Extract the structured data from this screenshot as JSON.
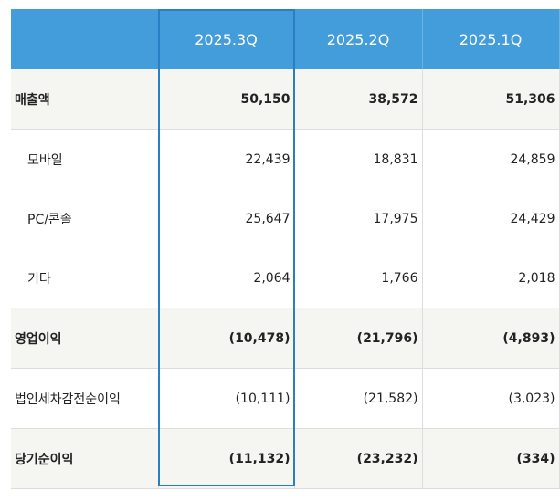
{
  "table": {
    "columns": [
      "",
      "2025.3Q",
      "2025.2Q",
      "2025.1Q"
    ],
    "rows": [
      {
        "label": "매출액",
        "values": [
          "50,150",
          "38,572",
          "51,306"
        ],
        "bold": true
      },
      {
        "label": "모바일",
        "values": [
          "22,439",
          "18,831",
          "24,859"
        ]
      },
      {
        "label": "PC/콘솔",
        "values": [
          "25,647",
          "17,975",
          "24,429"
        ]
      },
      {
        "label": "기타",
        "values": [
          "2,064",
          "1,766",
          "2,018"
        ]
      },
      {
        "label": "영업이익",
        "values": [
          "(10,478)",
          "(21,796)",
          "(4,893)"
        ],
        "bold": true
      },
      {
        "label": "법인세차감전순이익",
        "values": [
          "(10,111)",
          "(21,582)",
          "(3,023)"
        ]
      },
      {
        "label": "당기순이익",
        "values": [
          "(11,132)",
          "(23,232)",
          "(334)"
        ],
        "bold": true
      }
    ],
    "highlighted_column": "2025.3Q",
    "colors": {
      "header": "#449ddb",
      "highlight": "#2a7fc4",
      "bold_row": "#f5f5f2"
    }
  }
}
